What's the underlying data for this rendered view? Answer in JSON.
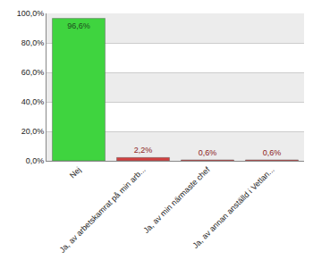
{
  "chart_data": {
    "type": "bar",
    "categories": [
      "Nej",
      "Ja, av arbetskamrat på min arb...",
      "Ja, av min närmaste chef",
      "Ja, av annan anställd i Vetlan..."
    ],
    "values": [
      96.6,
      2.2,
      0.6,
      0.6
    ],
    "value_labels": [
      "96,6%",
      "2,2%",
      "0,6%",
      "0,6%"
    ],
    "colors": [
      "#3fd43f",
      "#d04040",
      "#d04040",
      "#d04040"
    ],
    "ylim": [
      0,
      100
    ],
    "yticks": [
      {
        "value": 0,
        "label": "0,0%"
      },
      {
        "value": 20,
        "label": "20,0%"
      },
      {
        "value": 40,
        "label": "40,0%"
      },
      {
        "value": 60,
        "label": "60,0%"
      },
      {
        "value": 80,
        "label": "80,0%"
      },
      {
        "value": 100,
        "label": "100,0%"
      }
    ],
    "grid": true,
    "data_labels": true
  }
}
